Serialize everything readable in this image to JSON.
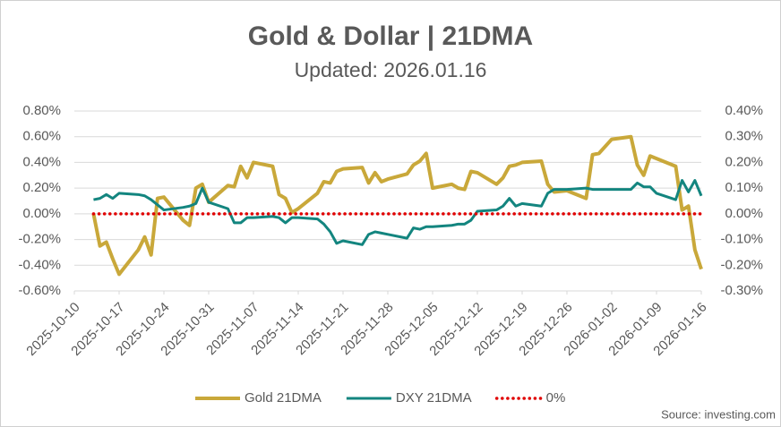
{
  "chart_data": {
    "type": "line",
    "title": "Gold & Dollar | 21DMA",
    "subtitle": "Updated: 2026.01.16",
    "source": "Source: investing.com",
    "x": [
      "2025-10-13",
      "2025-10-14",
      "2025-10-15",
      "2025-10-16",
      "2025-10-17",
      "2025-10-20",
      "2025-10-21",
      "2025-10-22",
      "2025-10-23",
      "2025-10-24",
      "2025-10-27",
      "2025-10-28",
      "2025-10-29",
      "2025-10-30",
      "2025-10-31",
      "2025-11-03",
      "2025-11-04",
      "2025-11-05",
      "2025-11-06",
      "2025-11-07",
      "2025-11-10",
      "2025-11-11",
      "2025-11-12",
      "2025-11-13",
      "2025-11-14",
      "2025-11-17",
      "2025-11-18",
      "2025-11-19",
      "2025-11-20",
      "2025-11-21",
      "2025-11-24",
      "2025-11-25",
      "2025-11-26",
      "2025-11-27",
      "2025-11-28",
      "2025-12-01",
      "2025-12-02",
      "2025-12-03",
      "2025-12-04",
      "2025-12-05",
      "2025-12-08",
      "2025-12-09",
      "2025-12-10",
      "2025-12-11",
      "2025-12-12",
      "2025-12-15",
      "2025-12-16",
      "2025-12-17",
      "2025-12-18",
      "2025-12-19",
      "2025-12-22",
      "2025-12-23",
      "2025-12-24",
      "2025-12-26",
      "2025-12-29",
      "2025-12-30",
      "2025-12-31",
      "2026-01-02",
      "2026-01-05",
      "2026-01-06",
      "2026-01-07",
      "2026-01-08",
      "2026-01-09",
      "2026-01-12",
      "2026-01-13",
      "2026-01-14",
      "2026-01-15",
      "2026-01-16"
    ],
    "series": [
      {
        "name": "Gold 21DMA",
        "color": "#c9a83a",
        "axis": "y",
        "style": "solid",
        "values": [
          0.0,
          -0.25,
          -0.22,
          -0.35,
          -0.47,
          -0.28,
          -0.18,
          -0.32,
          0.12,
          0.13,
          -0.05,
          -0.09,
          0.2,
          0.23,
          0.09,
          0.22,
          0.21,
          0.37,
          0.28,
          0.4,
          0.37,
          0.15,
          0.12,
          0.01,
          0.04,
          0.16,
          0.25,
          0.24,
          0.33,
          0.35,
          0.36,
          0.24,
          0.32,
          0.25,
          0.27,
          0.31,
          0.38,
          0.41,
          0.47,
          0.2,
          0.23,
          0.2,
          0.19,
          0.33,
          0.32,
          0.23,
          0.28,
          0.37,
          0.38,
          0.4,
          0.41,
          0.23,
          0.17,
          0.18,
          0.12,
          0.46,
          0.47,
          0.58,
          0.6,
          0.38,
          0.3,
          0.45,
          0.43,
          0.37,
          0.03,
          0.06,
          -0.28,
          -0.43
        ]
      },
      {
        "name": "DXY 21DMA",
        "color": "#13857f",
        "axis": "y2",
        "style": "solid",
        "values": [
          0.055,
          0.06,
          0.075,
          0.06,
          0.08,
          0.075,
          0.07,
          0.055,
          0.035,
          0.015,
          0.025,
          0.03,
          0.04,
          0.1,
          0.045,
          0.02,
          -0.035,
          -0.035,
          -0.015,
          -0.015,
          -0.01,
          -0.015,
          -0.035,
          -0.015,
          -0.015,
          -0.02,
          -0.04,
          -0.07,
          -0.115,
          -0.105,
          -0.12,
          -0.08,
          -0.07,
          -0.075,
          -0.08,
          -0.095,
          -0.055,
          -0.06,
          -0.05,
          -0.05,
          -0.045,
          -0.04,
          -0.04,
          -0.025,
          0.01,
          0.015,
          0.03,
          0.06,
          0.03,
          0.04,
          0.03,
          0.08,
          0.095,
          0.095,
          0.1,
          0.095,
          0.095,
          0.095,
          0.095,
          0.12,
          0.105,
          0.105,
          0.08,
          0.055,
          0.13,
          0.085,
          0.13,
          0.07
        ]
      },
      {
        "name": "0%",
        "color": "#e00000",
        "axis": "y",
        "style": "dotted",
        "values": [
          0,
          0,
          0,
          0,
          0,
          0,
          0,
          0,
          0,
          0,
          0,
          0,
          0,
          0,
          0,
          0,
          0,
          0,
          0,
          0,
          0,
          0,
          0,
          0,
          0,
          0,
          0,
          0,
          0,
          0,
          0,
          0,
          0,
          0,
          0,
          0,
          0,
          0,
          0,
          0,
          0,
          0,
          0,
          0,
          0,
          0,
          0,
          0,
          0,
          0,
          0,
          0,
          0,
          0,
          0,
          0,
          0,
          0,
          0,
          0,
          0,
          0,
          0,
          0,
          0,
          0,
          0,
          0
        ]
      }
    ],
    "xlim": [
      "2025-10-10",
      "2026-01-16"
    ],
    "xticks": [
      "2025-10-10",
      "2025-10-17",
      "2025-10-24",
      "2025-10-31",
      "2025-11-07",
      "2025-11-14",
      "2025-11-21",
      "2025-11-28",
      "2025-12-05",
      "2025-12-12",
      "2025-12-19",
      "2025-12-26",
      "2026-01-02",
      "2026-01-09",
      "2026-01-16"
    ],
    "ylim": [
      -0.6,
      0.8
    ],
    "yticks": [
      {
        "value": -0.6,
        "label": "-0.60%"
      },
      {
        "value": -0.4,
        "label": "-0.40%"
      },
      {
        "value": -0.2,
        "label": "-0.20%"
      },
      {
        "value": 0,
        "label": "0.00%"
      },
      {
        "value": 0.2,
        "label": "0.20%"
      },
      {
        "value": 0.4,
        "label": "0.40%"
      },
      {
        "value": 0.6,
        "label": "0.60%"
      },
      {
        "value": 0.8,
        "label": "0.80%"
      }
    ],
    "y2lim": [
      -0.3,
      0.4
    ],
    "y2ticks": [
      {
        "value": -0.3,
        "label": "-0.30%"
      },
      {
        "value": -0.2,
        "label": "-0.20%"
      },
      {
        "value": -0.1,
        "label": "-0.10%"
      },
      {
        "value": 0,
        "label": "0.00%"
      },
      {
        "value": 0.1,
        "label": "0.10%"
      },
      {
        "value": 0.2,
        "label": "0.20%"
      },
      {
        "value": 0.3,
        "label": "0.30%"
      },
      {
        "value": 0.4,
        "label": "0.40%"
      }
    ],
    "grid": true,
    "legend": "bottom"
  }
}
